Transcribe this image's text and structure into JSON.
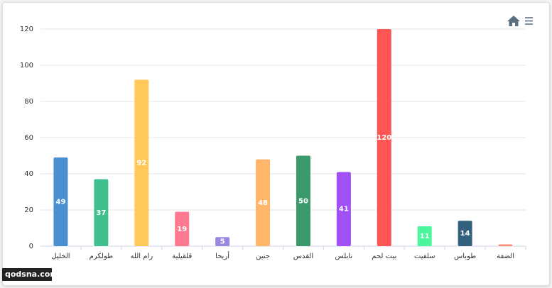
{
  "chart_data": {
    "type": "bar",
    "categories": [
      "الخليل",
      "طولكرم",
      "رام الله",
      "قلقيلية",
      "أريحا",
      "جنين",
      "القدس",
      "نابلس",
      "بيت لحم",
      "سلفيت",
      "طوباس",
      "الضفة"
    ],
    "values": [
      49,
      37,
      92,
      19,
      5,
      48,
      50,
      41,
      120,
      11,
      14,
      1
    ],
    "colors": [
      "#4a8fd0",
      "#40bf8f",
      "#ffc857",
      "#ff7a8f",
      "#9b87df",
      "#ffb66b",
      "#3a9a6b",
      "#a050f5",
      "#ff5555",
      "#4cf59b",
      "#34607f",
      "#ff8a7a"
    ],
    "ylim": [
      0,
      120
    ],
    "yticks": [
      0,
      20,
      40,
      60,
      80,
      100,
      120
    ],
    "grid": true,
    "watermark": "qodsna.com"
  }
}
